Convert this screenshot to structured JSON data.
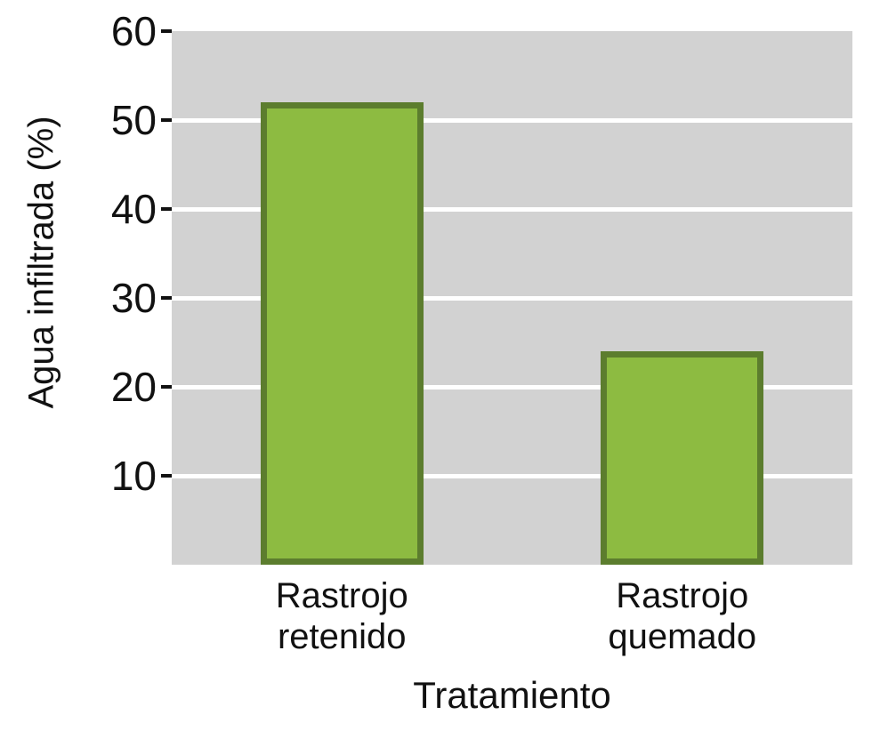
{
  "chart_data": {
    "type": "bar",
    "categories": [
      [
        "Rastrojo",
        "retenido"
      ],
      [
        "Rastrojo",
        "quemado"
      ]
    ],
    "values": [
      52,
      24
    ],
    "title": "",
    "xlabel": "Tratamiento",
    "ylabel": "Agua infiltrada (%)",
    "ylim": [
      0,
      60
    ],
    "yticks": [
      10,
      20,
      30,
      40,
      50,
      60
    ],
    "grid": true,
    "legend": "none",
    "colors": {
      "plot_bg": "#d2d2d2",
      "gridline": "#ffffff",
      "bar_fill": "#8dbb41",
      "bar_border": "#5c7d2e",
      "text": "#111111",
      "tick": "#111111"
    }
  }
}
